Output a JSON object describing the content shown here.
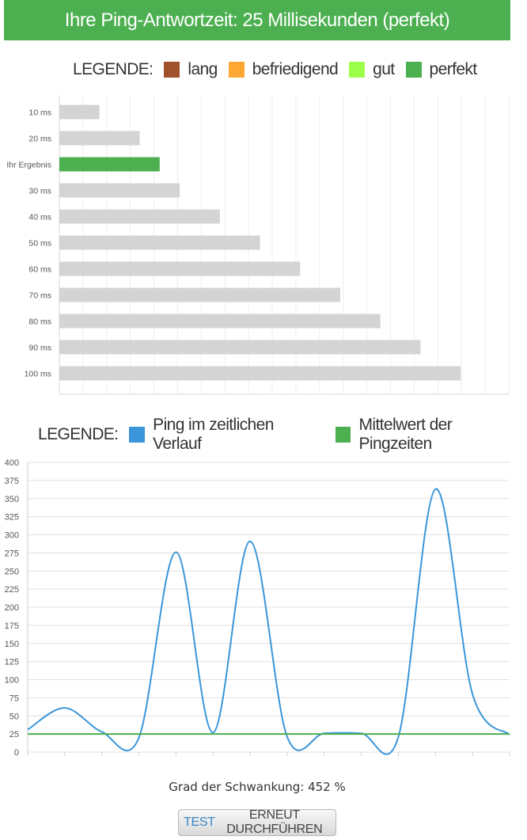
{
  "header": {
    "title": "Ihre Ping-Antwortzeit: 25 Millisekunden (perfekt)"
  },
  "legend1": {
    "label": "LEGENDE:",
    "items": [
      {
        "label": "lang",
        "color": "#a0522d"
      },
      {
        "label": "befriedigend",
        "color": "#ffa733"
      },
      {
        "label": "gut",
        "color": "#9cff4a"
      },
      {
        "label": "perfekt",
        "color": "#4caf50"
      }
    ]
  },
  "legend2": {
    "label": "LEGENDE:",
    "items": [
      {
        "label": "Ping im zeitlichen Verlauf",
        "color": "#3a96d9"
      },
      {
        "label": "Mittelwert der Pingzeiten",
        "color": "#4caf50"
      }
    ]
  },
  "chart_data": [
    {
      "type": "bar",
      "orientation": "horizontal",
      "categories": [
        "10 ms",
        "20 ms",
        "Ihr Ergebnis",
        "30 ms",
        "40 ms",
        "50 ms",
        "60 ms",
        "70 ms",
        "80 ms",
        "90 ms",
        "100 ms"
      ],
      "values": [
        10,
        20,
        25,
        30,
        40,
        50,
        60,
        70,
        80,
        90,
        100
      ],
      "highlight_index": 2,
      "colors": {
        "default": "#d4d4d4",
        "highlight": "#4caf50"
      },
      "xlim": [
        0,
        112
      ],
      "grid": true
    },
    {
      "type": "line",
      "x": [
        0,
        1,
        2,
        3,
        4,
        5,
        6,
        7,
        8,
        9,
        10,
        11,
        12,
        13
      ],
      "series": [
        {
          "name": "Ping im zeitlichen Verlauf",
          "color": "#3a96d9",
          "values": [
            31,
            61,
            28,
            20,
            276,
            27,
            291,
            21,
            26,
            26,
            21,
            363,
            80,
            24
          ]
        },
        {
          "name": "Mittelwert der Pingzeiten",
          "color": "#4caf50",
          "values": [
            25,
            25,
            25,
            25,
            25,
            25,
            25,
            25,
            25,
            25,
            25,
            25,
            25,
            25
          ]
        }
      ],
      "yticks": [
        "0",
        "25",
        "50",
        "75",
        "100",
        "125",
        "150",
        "175",
        "200",
        "225",
        "250",
        "275",
        "300",
        "325",
        "350",
        "375",
        "400"
      ],
      "ylim": [
        0,
        400
      ],
      "grid": true
    }
  ],
  "footer": {
    "variation_text": "Grad der Schwankung: 452 %",
    "button_highlight": "TEST",
    "button_rest": "ERNEUT DURCHFÜHREN"
  }
}
